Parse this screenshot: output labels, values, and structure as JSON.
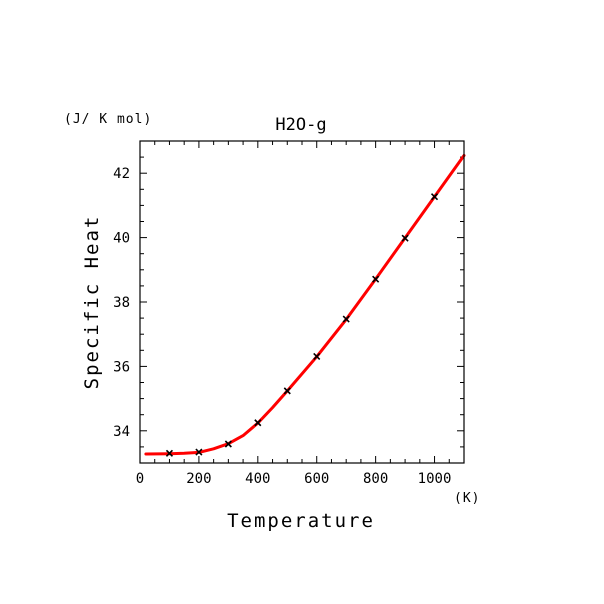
{
  "chart_data": {
    "type": "line",
    "title": "H2O-g",
    "xlabel": "Temperature",
    "ylabel": "Specific Heat",
    "x_unit": "(K)",
    "y_unit": "(J/ K mol)",
    "xlim": [
      0,
      1100
    ],
    "ylim": [
      33.0,
      43.0
    ],
    "x_ticks": [
      0,
      200,
      400,
      600,
      800,
      1000
    ],
    "y_ticks": [
      34,
      36,
      38,
      40,
      42
    ],
    "grid": false,
    "series": [
      {
        "style": "line",
        "color": "#ff0000",
        "x": [
          20,
          100,
          150,
          200,
          250,
          300,
          350,
          400,
          450,
          500,
          600,
          700,
          800,
          900,
          1000,
          1100
        ],
        "y": [
          33.28,
          33.29,
          33.3,
          33.33,
          33.44,
          33.6,
          33.85,
          34.24,
          34.72,
          35.24,
          36.3,
          37.46,
          38.71,
          39.99,
          41.27,
          42.55
        ]
      },
      {
        "style": "markers",
        "marker": "x",
        "color": "#000000",
        "x": [
          100,
          200,
          300,
          400,
          500,
          600,
          700,
          800,
          900,
          1000
        ],
        "y": [
          33.3,
          33.34,
          33.59,
          34.25,
          35.24,
          36.31,
          37.47,
          38.71,
          39.98,
          41.27
        ]
      }
    ]
  }
}
